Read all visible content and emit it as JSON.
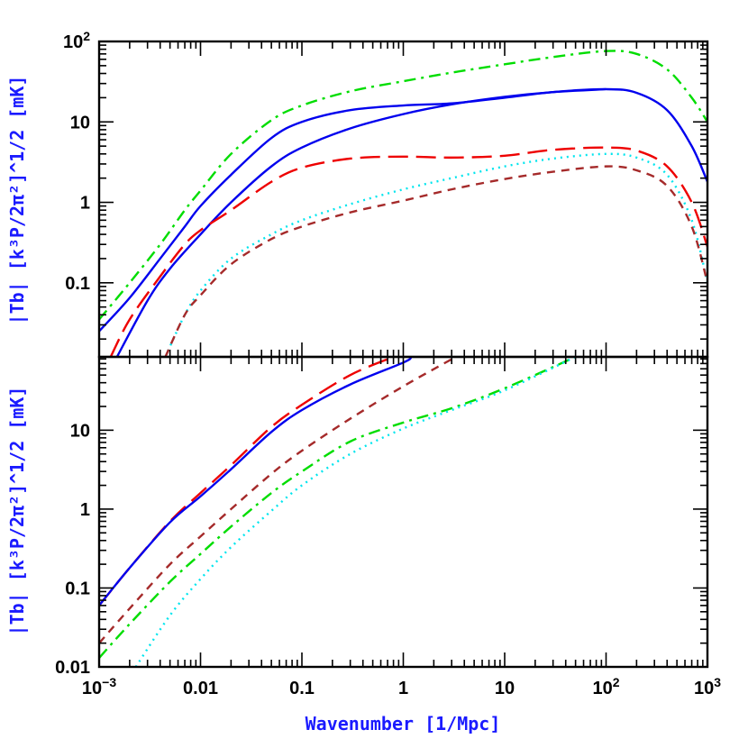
{
  "chart_data": [
    {
      "type": "line",
      "panel": "top",
      "ylabel": "|Tb| [k³P/2π²]^1/2 [mK]",
      "xscale": "log",
      "yscale": "log",
      "xlim": [
        0.001,
        1000
      ],
      "ylim": [
        0.012,
        100
      ],
      "y_ticklabels": [
        "10²",
        "10",
        "1",
        "0.1"
      ],
      "y_tickvalues": [
        100,
        10,
        1,
        0.1
      ],
      "series": [
        {
          "name": "green dash-dot",
          "color": "#00dd00",
          "dash": "dashdot",
          "x": [
            0.001,
            0.002,
            0.004,
            0.007,
            0.01,
            0.02,
            0.05,
            0.1,
            0.3,
            1,
            3,
            10,
            30,
            100,
            200,
            400,
            700,
            1000
          ],
          "y": [
            0.035,
            0.1,
            0.3,
            0.8,
            1.4,
            4.0,
            10.5,
            16,
            24,
            32,
            41,
            52,
            64,
            76,
            70,
            45,
            20,
            10
          ]
        },
        {
          "name": "blue solid upper",
          "color": "#0000ee",
          "dash": "solid",
          "x": [
            0.001,
            0.002,
            0.004,
            0.007,
            0.01,
            0.02,
            0.05,
            0.1,
            0.3,
            1,
            3,
            10,
            30,
            100,
            200,
            400,
            700,
            1000
          ],
          "y": [
            0.025,
            0.065,
            0.2,
            0.5,
            0.9,
            2.2,
            6.3,
            10,
            14,
            16,
            17,
            20,
            23.5,
            25.5,
            23,
            14,
            5,
            1.8
          ]
        },
        {
          "name": "blue solid lower",
          "color": "#0000ee",
          "dash": "solid",
          "x": [
            0.0015,
            0.003,
            0.005,
            0.01,
            0.02,
            0.05,
            0.1,
            0.3,
            1,
            3,
            10,
            30,
            100
          ],
          "y": [
            0.012,
            0.06,
            0.15,
            0.4,
            1.0,
            2.8,
            4.8,
            8.3,
            12.5,
            16.5,
            20.5,
            23.5,
            25.5
          ]
        },
        {
          "name": "red long dash",
          "color": "#ee0000",
          "dash": "longdash",
          "x": [
            0.0013,
            0.002,
            0.004,
            0.007,
            0.01,
            0.02,
            0.05,
            0.1,
            0.3,
            1,
            3,
            10,
            30,
            100,
            200,
            400,
            700,
            1000
          ],
          "y": [
            0.012,
            0.035,
            0.12,
            0.3,
            0.45,
            0.8,
            1.8,
            2.7,
            3.5,
            3.7,
            3.6,
            3.8,
            4.5,
            4.8,
            4.4,
            2.8,
            1.0,
            0.28
          ]
        },
        {
          "name": "cyan dotted",
          "color": "#00e5ee",
          "dash": "dotted",
          "x": [
            0.0045,
            0.007,
            0.01,
            0.02,
            0.05,
            0.1,
            0.3,
            1,
            3,
            10,
            30,
            100,
            200,
            400,
            700,
            1000
          ],
          "y": [
            0.012,
            0.04,
            0.08,
            0.2,
            0.4,
            0.6,
            0.95,
            1.45,
            2.0,
            2.8,
            3.5,
            4.0,
            3.6,
            2.2,
            0.6,
            0.1
          ]
        },
        {
          "name": "brown short dash",
          "color": "#a52a2a",
          "dash": "shortdash",
          "x": [
            0.0045,
            0.007,
            0.01,
            0.02,
            0.05,
            0.1,
            0.3,
            1,
            3,
            10,
            30,
            100,
            200,
            400,
            700,
            1000
          ],
          "y": [
            0.012,
            0.04,
            0.07,
            0.17,
            0.35,
            0.5,
            0.75,
            1.05,
            1.45,
            1.95,
            2.4,
            2.8,
            2.5,
            1.6,
            0.5,
            0.1
          ]
        }
      ]
    },
    {
      "type": "line",
      "panel": "bottom",
      "ylabel": "|Tb| [k³P/2π²]^1/2 [mK]",
      "xlabel": "Wavenumber [1/Mpc]",
      "xscale": "log",
      "yscale": "log",
      "xlim": [
        0.001,
        1000
      ],
      "ylim": [
        0.01,
        85
      ],
      "x_ticklabels": [
        "10⁻³",
        "0.01",
        "0.1",
        "1",
        "10",
        "10²",
        "10³"
      ],
      "x_tickvalues": [
        0.001,
        0.01,
        0.1,
        1,
        10,
        100,
        1000
      ],
      "y_ticklabels": [
        "10",
        "1",
        "0.1",
        "0.01"
      ],
      "y_tickvalues": [
        10,
        1,
        0.1,
        0.01
      ],
      "series": [
        {
          "name": "red long dash",
          "color": "#ee0000",
          "dash": "longdash",
          "x": [
            0.001,
            0.002,
            0.005,
            0.01,
            0.02,
            0.05,
            0.1,
            0.3,
            0.8
          ],
          "y": [
            0.06,
            0.18,
            0.7,
            1.6,
            3.6,
            11,
            21,
            50,
            85
          ]
        },
        {
          "name": "blue solid",
          "color": "#0000ee",
          "dash": "solid",
          "x": [
            0.001,
            0.002,
            0.005,
            0.01,
            0.02,
            0.05,
            0.1,
            0.3,
            1.0,
            1.2
          ],
          "y": [
            0.06,
            0.18,
            0.68,
            1.45,
            3.2,
            9.5,
            18,
            38,
            72,
            85
          ]
        },
        {
          "name": "brown short dash",
          "color": "#a52a2a",
          "dash": "shortdash",
          "x": [
            0.001,
            0.002,
            0.005,
            0.01,
            0.02,
            0.05,
            0.1,
            0.3,
            1,
            3.3
          ],
          "y": [
            0.02,
            0.055,
            0.2,
            0.45,
            1.0,
            2.8,
            5.5,
            14,
            36,
            85
          ]
        },
        {
          "name": "green dash-dot",
          "color": "#00dd00",
          "dash": "dashdot",
          "x": [
            0.001,
            0.002,
            0.005,
            0.01,
            0.02,
            0.05,
            0.1,
            0.3,
            1,
            3,
            10,
            50
          ],
          "y": [
            0.013,
            0.035,
            0.12,
            0.27,
            0.6,
            1.6,
            3.0,
            7.2,
            12.5,
            19,
            34,
            85
          ]
        },
        {
          "name": "cyan dotted",
          "color": "#00e5ee",
          "dash": "dotted",
          "x": [
            0.0023,
            0.005,
            0.01,
            0.02,
            0.05,
            0.1,
            0.3,
            1,
            3,
            10,
            50
          ],
          "y": [
            0.01,
            0.045,
            0.13,
            0.33,
            0.95,
            2.0,
            5.0,
            10.5,
            18,
            32,
            85
          ]
        }
      ]
    }
  ]
}
